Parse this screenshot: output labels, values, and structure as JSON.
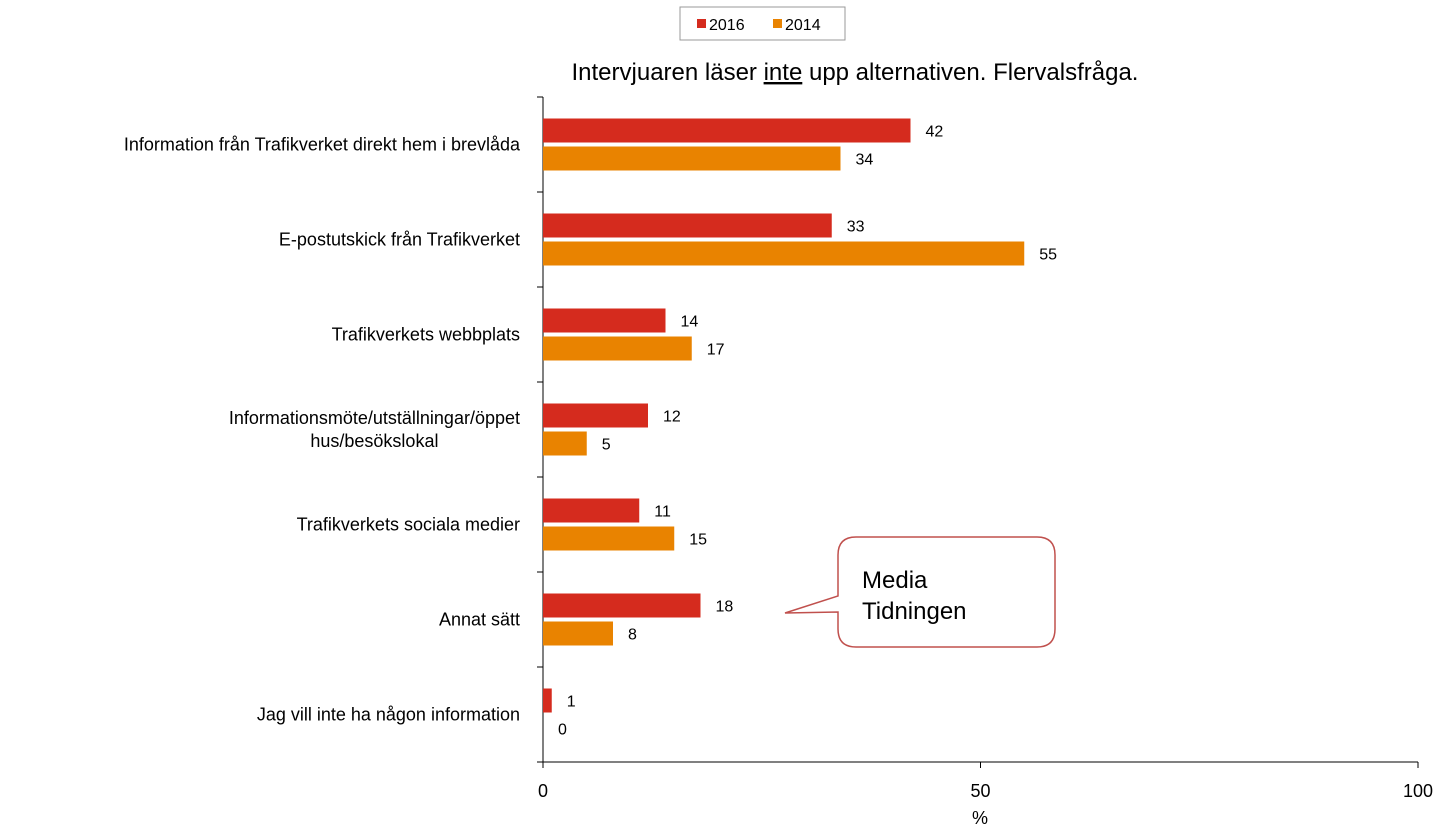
{
  "chart_data": {
    "type": "barh",
    "title": [
      {
        "text": "Intervjuaren läser "
      },
      {
        "text": "inte",
        "underline": true
      },
      {
        "text": " upp alternativen. Flervalsfråga."
      }
    ],
    "categories": [
      "Information från Trafikverket direkt hem i brevlåda",
      "E-postutskick från Trafikverket",
      "Trafikverkets webbplats",
      "Informationsmöte/utställningar/öppet\nhus/besökslokal",
      "Trafikverkets sociala medier",
      "Annat sätt",
      "Jag vill inte ha någon information"
    ],
    "series": [
      {
        "name": "2016",
        "color": "#d52b1e",
        "values": [
          42,
          33,
          14,
          12,
          11,
          18,
          1
        ]
      },
      {
        "name": "2014",
        "color": "#e98300",
        "values": [
          34,
          55,
          17,
          5,
          15,
          8,
          0
        ]
      }
    ],
    "xlabel": "%",
    "xlim": [
      0,
      100
    ],
    "xticks": [
      0,
      50,
      100
    ],
    "legend": "top",
    "annotation": "Media\nTidningen"
  }
}
